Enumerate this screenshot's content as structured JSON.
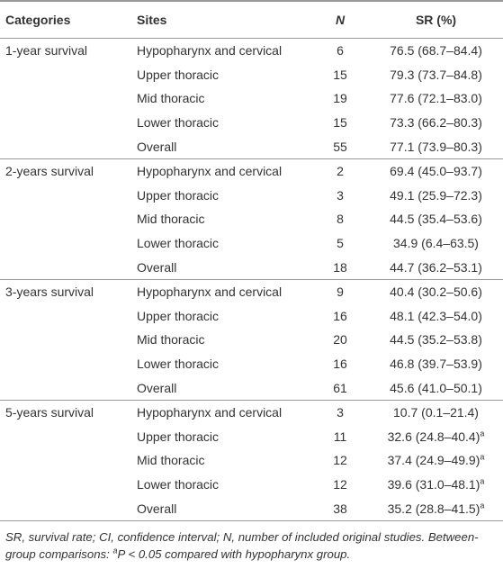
{
  "table": {
    "columns": [
      "Categories",
      "Sites",
      "N",
      "SR (%)"
    ],
    "groups": [
      {
        "category": "1-year survival",
        "rows": [
          {
            "site": "Hypopharynx and cervical",
            "n": 6,
            "sr": "76.5 (68.7–84.4)"
          },
          {
            "site": "Upper thoracic",
            "n": 15,
            "sr": "79.3 (73.7–84.8)"
          },
          {
            "site": "Mid thoracic",
            "n": 19,
            "sr": "77.6 (72.1–83.0)"
          },
          {
            "site": "Lower thoracic",
            "n": 15,
            "sr": "73.3 (66.2–80.3)"
          },
          {
            "site": "Overall",
            "n": 55,
            "sr": "77.1 (73.9–80.3)"
          }
        ]
      },
      {
        "category": "2-years survival",
        "rows": [
          {
            "site": "Hypopharynx and cervical",
            "n": 2,
            "sr": "69.4 (45.0–93.7)"
          },
          {
            "site": "Upper thoracic",
            "n": 3,
            "sr": "49.1 (25.9–72.3)"
          },
          {
            "site": "Mid thoracic",
            "n": 8,
            "sr": "44.5 (35.4–53.6)"
          },
          {
            "site": "Lower thoracic",
            "n": 5,
            "sr": "34.9 (6.4–63.5)"
          },
          {
            "site": "Overall",
            "n": 18,
            "sr": "44.7 (36.2–53.1)"
          }
        ]
      },
      {
        "category": "3-years survival",
        "rows": [
          {
            "site": "Hypopharynx and cervical",
            "n": 9,
            "sr": "40.4 (30.2–50.6)"
          },
          {
            "site": "Upper thoracic",
            "n": 16,
            "sr": "48.1 (42.3–54.0)"
          },
          {
            "site": "Mid thoracic",
            "n": 20,
            "sr": "44.5 (35.2–53.8)"
          },
          {
            "site": "Lower thoracic",
            "n": 16,
            "sr": "46.8 (39.7–53.9)"
          },
          {
            "site": "Overall",
            "n": 61,
            "sr": "45.6 (41.0–50.1)"
          }
        ]
      },
      {
        "category": "5-years survival",
        "rows": [
          {
            "site": "Hypopharynx and cervical",
            "n": 3,
            "sr": "10.7 (0.1–21.4)"
          },
          {
            "site": "Upper thoracic",
            "n": 11,
            "sr": "32.6 (24.8–40.4)",
            "note": "a"
          },
          {
            "site": "Mid thoracic",
            "n": 12,
            "sr": "37.4 (24.9–49.9)",
            "note": "a"
          },
          {
            "site": "Lower thoracic",
            "n": 12,
            "sr": "39.6 (31.0–48.1)",
            "note": "a"
          },
          {
            "site": "Overall",
            "n": 38,
            "sr": "35.2 (28.8–41.5)",
            "note": "a"
          }
        ]
      }
    ]
  },
  "footnote": {
    "text": "SR, survival rate; CI, confidence interval; N, number of included original studies. Between-group comparisons: ",
    "mark": "a",
    "p": "P",
    "rest": " < 0.05 compared with hypopharynx group."
  }
}
